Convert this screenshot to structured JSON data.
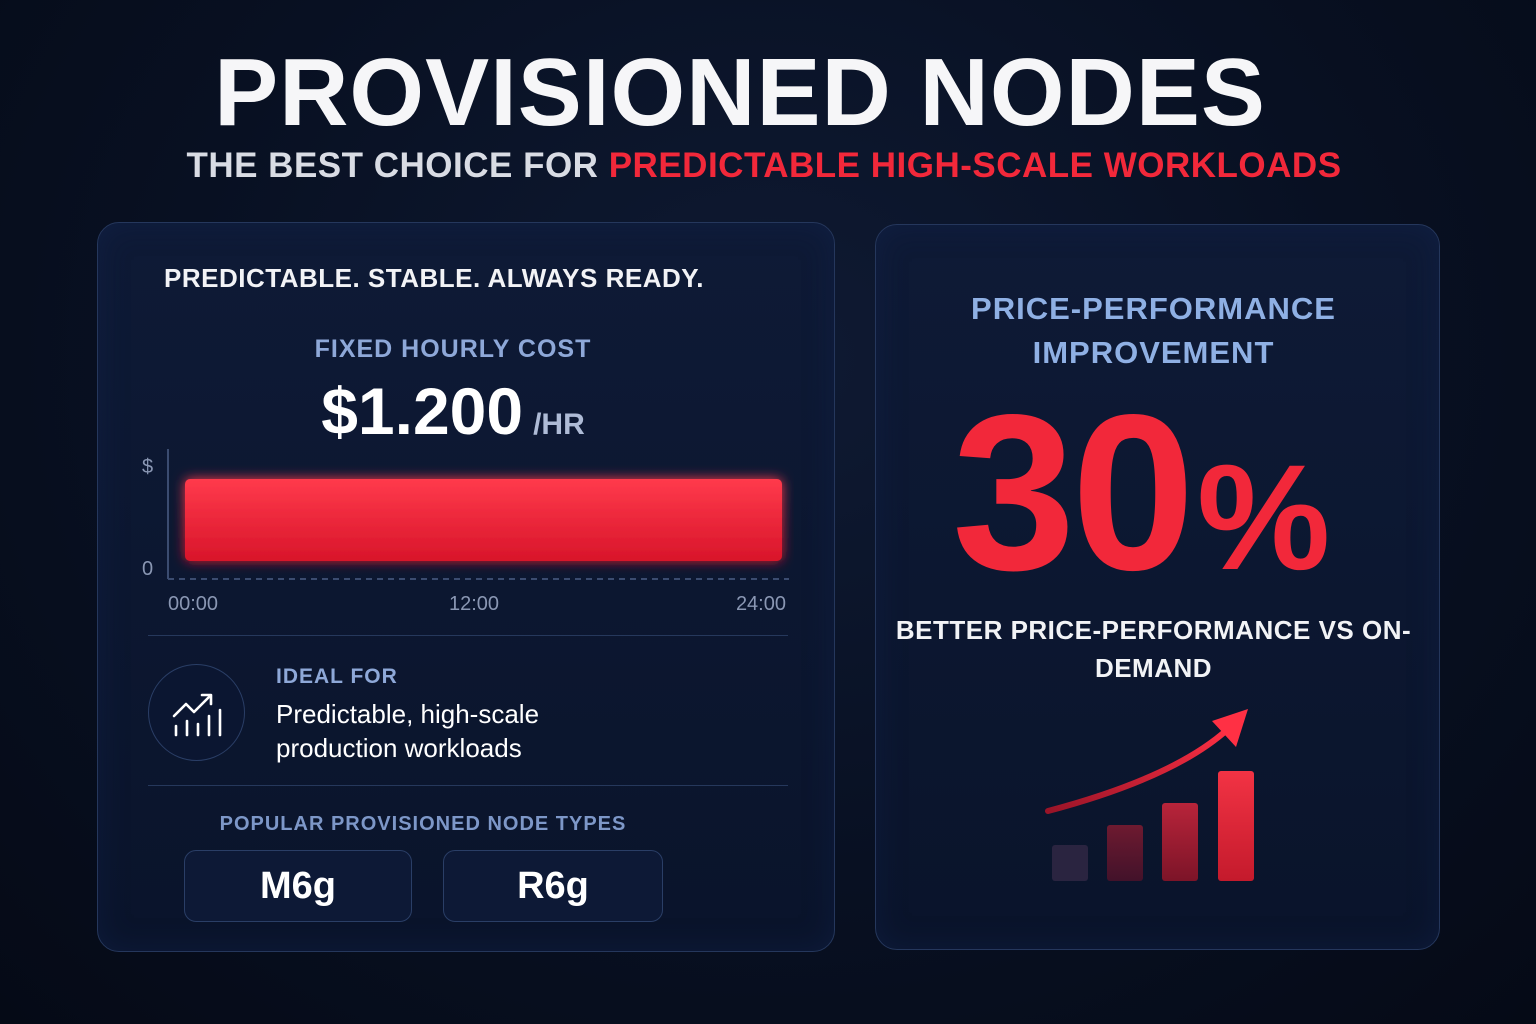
{
  "header": {
    "title": "PROVISIONED NODES",
    "subtitle_prefix": "THE BEST CHOICE FOR",
    "subtitle_accent": "PREDICTABLE HIGH-SCALE WORKLOADS"
  },
  "left_card": {
    "tagline": "PREDICTABLE. STABLE. ALWAYS READY.",
    "cost_label": "FIXED HOURLY COST",
    "cost_value": "$1.200",
    "cost_unit": "/HR",
    "chart": {
      "y_top_label": "$",
      "y_bottom_label": "0",
      "x_labels": [
        "00:00",
        "12:00",
        "24:00"
      ]
    },
    "ideal_label": "IDEAL FOR",
    "ideal_text": "Predictable, high-scale production workloads",
    "types_label": "POPULAR PROVISIONED NODE TYPES",
    "types": [
      "M6g",
      "R6g"
    ]
  },
  "right_card": {
    "label": "PRICE-PERFORMANCE IMPROVEMENT",
    "value": "30",
    "value_unit": "%",
    "description": "BETTER PRICE-PERFORMANCE VS ON-DEMAND"
  },
  "colors": {
    "accent_red": "#f2283a",
    "label_blue": "#8ea8d8",
    "background": "#081022"
  },
  "icons": {
    "ideal": "growth-chart-icon",
    "improvement": "rising-bars-arrow-icon"
  }
}
